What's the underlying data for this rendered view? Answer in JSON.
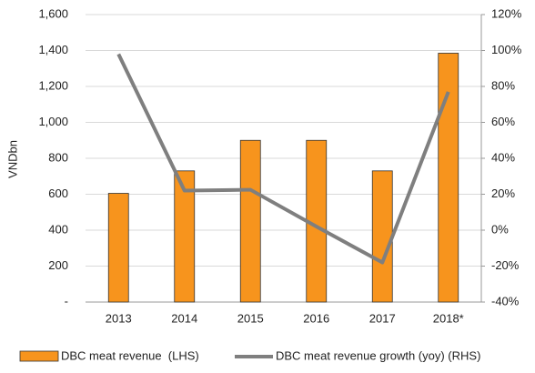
{
  "chart_data": {
    "type": "bar_line",
    "y_label": "VNDbn",
    "categories": [
      "2013",
      "2014",
      "2015",
      "2016",
      "2017",
      "2018*"
    ],
    "series": [
      {
        "name": "DBC meat revenue  (LHS)",
        "type": "bar",
        "color": "#f7941d",
        "values": [
          605,
          730,
          900,
          900,
          730,
          1385
        ]
      },
      {
        "name": "DBC meat revenue growth (yoy) (RHS)",
        "type": "line",
        "axis": "y2",
        "color": "#7f7f7f",
        "values": [
          98,
          22,
          22.5,
          2,
          -18,
          77
        ]
      }
    ],
    "ylim": [
      0,
      1600
    ],
    "yticks": [
      {
        "value": 0,
        "label": "-"
      },
      200,
      400,
      600,
      800,
      {
        "value": 1000,
        "label": "1,000"
      },
      {
        "value": 1200,
        "label": "1,200"
      },
      {
        "value": 1400,
        "label": "1,400"
      },
      {
        "value": 1600,
        "label": "1,600"
      }
    ],
    "y2lim": [
      -40,
      120
    ],
    "y2ticks": [
      {
        "value": -40,
        "label": "-40%"
      },
      {
        "value": -20,
        "label": "-20%"
      },
      {
        "value": 0,
        "label": "0%"
      },
      {
        "value": 20,
        "label": "20%"
      },
      {
        "value": 40,
        "label": "40%"
      },
      {
        "value": 60,
        "label": "60%"
      },
      {
        "value": 80,
        "label": "80%"
      },
      {
        "value": 100,
        "label": "100%"
      },
      {
        "value": 120,
        "label": "120%"
      }
    ],
    "grid": true,
    "legend": "bottom"
  }
}
